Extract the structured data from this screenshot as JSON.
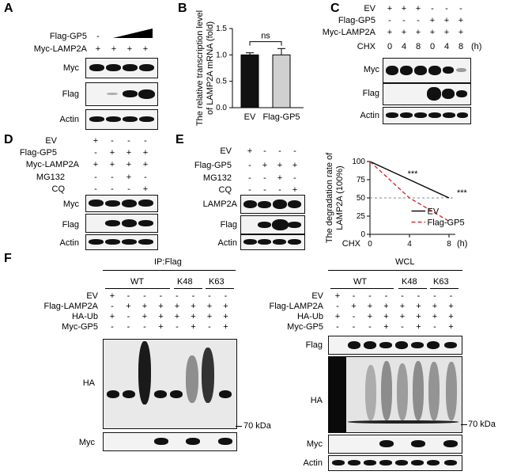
{
  "panels": {
    "A": {
      "letter": "A",
      "row_labels": [
        "Flag-GP5",
        "Myc-LAMP2A"
      ],
      "flag_gp5": [
        "-"
      ],
      "myc_lamp2a": [
        "+",
        "+",
        "+",
        "+"
      ],
      "blots": [
        "Myc",
        "Flag",
        "Actin"
      ]
    },
    "B": {
      "letter": "B",
      "significance": "ns"
    },
    "C": {
      "letter": "C",
      "row_labels": [
        "EV",
        "Flag-GP5",
        "Myc-LAMP2A",
        "CHX"
      ],
      "ev": [
        "+",
        "+",
        "+",
        "-",
        "-",
        "-"
      ],
      "flag_gp5": [
        "-",
        "-",
        "-",
        "+",
        "+",
        "+"
      ],
      "myc_lamp2a": [
        "+",
        "+",
        "+",
        "+",
        "+",
        "+"
      ],
      "chx": [
        "0",
        "4",
        "8",
        "0",
        "4",
        "8"
      ],
      "chx_unit": "(h)",
      "blots": [
        "Myc",
        "Flag",
        "Actin"
      ]
    },
    "D": {
      "letter": "D",
      "row_labels": [
        "EV",
        "Flag-GP5",
        "Myc-LAMP2A",
        "MG132",
        "CQ"
      ],
      "ev": [
        "+",
        "-",
        "-",
        "-"
      ],
      "flag_gp5": [
        "-",
        "+",
        "+",
        "+"
      ],
      "myc_lamp2a": [
        "+",
        "+",
        "+",
        "+"
      ],
      "mg132": [
        "-",
        "-",
        "+",
        "-"
      ],
      "cq": [
        "-",
        "-",
        "-",
        "+"
      ],
      "blots": [
        "Myc",
        "Flag",
        "Actin"
      ]
    },
    "E": {
      "letter": "E",
      "row_labels": [
        "EV",
        "Flag-GP5",
        "MG132",
        "CQ"
      ],
      "ev": [
        "+",
        "-",
        "-",
        "-"
      ],
      "flag_gp5": [
        "-",
        "+",
        "+",
        "+"
      ],
      "mg132": [
        "-",
        "-",
        "+",
        "-"
      ],
      "cq": [
        "-",
        "-",
        "-",
        "+"
      ],
      "blots": [
        "LAMP2A",
        "Flag",
        "Actin"
      ],
      "sig_top": "***",
      "sig_right": "***",
      "chx_label": "CHX",
      "chx_unit": "(h)"
    },
    "F": {
      "letter": "F",
      "ip_title": "IP:Flag",
      "wcl_title": "WCL",
      "groups": [
        "WT",
        "K48",
        "K63"
      ],
      "row_labels": [
        "EV",
        "Flag-LAMP2A",
        "HA-Ub",
        "Myc-GP5"
      ],
      "ev": [
        "+",
        "-",
        "-",
        "-",
        "-",
        "-",
        "-",
        "-"
      ],
      "flag_lamp2a": [
        "-",
        "+",
        "+",
        "+",
        "+",
        "+",
        "+",
        "+"
      ],
      "ha_ub": [
        "+",
        "-",
        "+",
        "+",
        "+",
        "+",
        "+",
        "+"
      ],
      "myc_gp5": [
        "-",
        "-",
        "-",
        "+",
        "-",
        "+",
        "-",
        "+"
      ],
      "ip_blots": [
        "HA",
        "Myc"
      ],
      "wcl_blots": [
        "Flag",
        "HA",
        "Myc",
        "Actin"
      ],
      "marker": "70 kDa"
    }
  },
  "chart_data": [
    {
      "type": "bar",
      "title": "",
      "categories": [
        "EV",
        "Flag-GP5"
      ],
      "values": [
        1.0,
        1.0
      ],
      "errors": [
        0.04,
        0.12
      ],
      "colors": [
        "#111111",
        "#d0d0d0"
      ],
      "ylabel": "The relative transcription level of LAMP2A mRNA (fold)",
      "ylim": [
        0,
        1.5
      ],
      "yticks": [
        "0.0",
        "0.5",
        "1.0",
        "1.5"
      ],
      "annotation": "ns"
    },
    {
      "type": "line",
      "title": "",
      "x": [
        0,
        4,
        8
      ],
      "xticks": [
        "0",
        "4",
        "8"
      ],
      "xlabel": "CHX",
      "xunit": "(h)",
      "ylabel": "The degradation rate of LAMP2A (100%)",
      "ylim": [
        0,
        100
      ],
      "yticks": [
        "0",
        "25",
        "50",
        "75",
        "100"
      ],
      "reference_y": 50,
      "series": [
        {
          "name": "EV",
          "values": [
            100,
            75,
            50
          ],
          "color": "#000000",
          "dash": false
        },
        {
          "name": "Flag-GP5",
          "values": [
            100,
            50,
            18
          ],
          "color": "#cc2222",
          "dash": true
        }
      ],
      "annotations": [
        "***",
        "***"
      ],
      "legend": "inside-bottom"
    }
  ]
}
